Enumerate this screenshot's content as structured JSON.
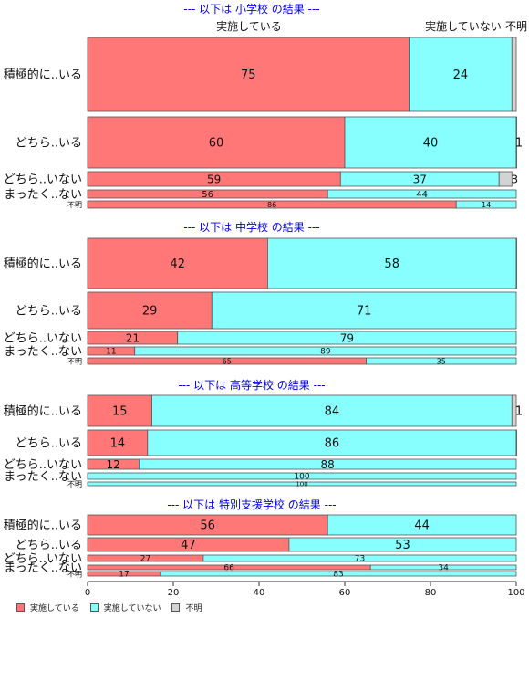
{
  "colors": {
    "implemented": "#ff7777",
    "not_implemented": "#88ffff",
    "unknown": "#d3d3d3",
    "title": "#0000ee"
  },
  "legend": {
    "implemented": "実施している",
    "not_implemented": "実施していない",
    "unknown": "不明"
  },
  "column_headers": [
    "実施している",
    "実施していない",
    "不明"
  ],
  "chart_data": {
    "type": "bar",
    "orientation": "horizontal",
    "stacked": true,
    "xlim": [
      0,
      100
    ],
    "xticks": [
      0,
      20,
      40,
      60,
      80,
      100
    ],
    "series": [
      {
        "name": "実施している"
      },
      {
        "name": "実施していない"
      },
      {
        "name": "不明"
      }
    ],
    "panels": [
      {
        "title": "--- 以下は 小学校 の結果 ---",
        "rows": [
          {
            "label": "積極的に..いる",
            "values": [
              75,
              24,
              1
            ],
            "labels": [
              "75",
              "24",
              ""
            ]
          },
          {
            "label": "どちら..いる",
            "values": [
              60,
              40,
              1
            ],
            "labels": [
              "60",
              "40",
              "1"
            ]
          },
          {
            "label": "どちら..いない",
            "values": [
              59,
              37,
              3
            ],
            "labels": [
              "59",
              "37",
              "3"
            ]
          },
          {
            "label": "まったく..ない",
            "values": [
              56,
              44,
              0
            ],
            "labels": [
              "56",
              "44",
              ""
            ]
          },
          {
            "label": "不明",
            "values": [
              86,
              14,
              0
            ],
            "labels": [
              "86",
              "14",
              ""
            ]
          }
        ]
      },
      {
        "title": "--- 以下は 中学校 の結果 ---",
        "rows": [
          {
            "label": "積極的に..いる",
            "values": [
              42,
              58,
              0.5
            ],
            "labels": [
              "42",
              "58",
              ""
            ]
          },
          {
            "label": "どちら..いる",
            "values": [
              29,
              71,
              0
            ],
            "labels": [
              "29",
              "71",
              ""
            ]
          },
          {
            "label": "どちら..いない",
            "values": [
              21,
              79,
              0
            ],
            "labels": [
              "21",
              "79",
              ""
            ]
          },
          {
            "label": "まったく..ない",
            "values": [
              11,
              89,
              0
            ],
            "labels": [
              "11",
              "89",
              ""
            ]
          },
          {
            "label": "不明",
            "values": [
              65,
              35,
              0
            ],
            "labels": [
              "65",
              "35",
              ""
            ]
          }
        ]
      },
      {
        "title": "--- 以下は 高等学校 の結果 ---",
        "rows": [
          {
            "label": "積極的に..いる",
            "values": [
              15,
              84,
              1
            ],
            "labels": [
              "15",
              "84",
              "1"
            ]
          },
          {
            "label": "どちら..いる",
            "values": [
              14,
              86,
              0.5
            ],
            "labels": [
              "14",
              "86",
              ""
            ]
          },
          {
            "label": "どちら..いない",
            "values": [
              12,
              88,
              0
            ],
            "labels": [
              "12",
              "88",
              ""
            ]
          },
          {
            "label": "まったく..ない",
            "values": [
              0,
              100,
              0
            ],
            "labels": [
              "",
              "100",
              ""
            ]
          },
          {
            "label": "不明",
            "values": [
              0,
              100,
              0
            ],
            "labels": [
              "",
              "100",
              ""
            ]
          }
        ]
      },
      {
        "title": "--- 以下は 特別支援学校 の結果 ---",
        "rows": [
          {
            "label": "積極的に..いる",
            "values": [
              56,
              44,
              0
            ],
            "labels": [
              "56",
              "44",
              ""
            ]
          },
          {
            "label": "どちら..いる",
            "values": [
              47,
              53,
              0
            ],
            "labels": [
              "47",
              "53",
              ""
            ]
          },
          {
            "label": "どちら..いない",
            "values": [
              27,
              73,
              0
            ],
            "labels": [
              "27",
              "73",
              ""
            ]
          },
          {
            "label": "まったく..ない",
            "values": [
              66,
              34,
              0
            ],
            "labels": [
              "66",
              "34",
              ""
            ]
          },
          {
            "label": "不明",
            "values": [
              17,
              83,
              0
            ],
            "labels": [
              "17",
              "83",
              ""
            ]
          }
        ]
      }
    ]
  }
}
